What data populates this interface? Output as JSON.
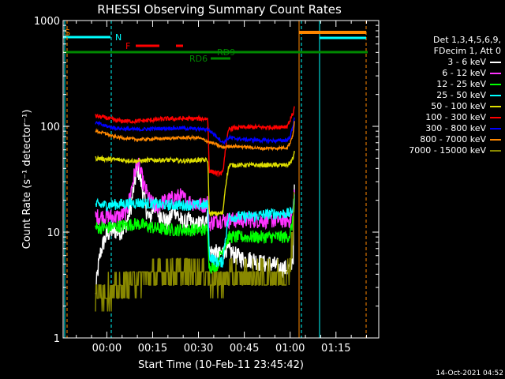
{
  "chart_data": {
    "type": "line",
    "title": "RHESSI Observing Summary Count Rates",
    "xlabel": "Start Time (10-Feb-11 23:45:42)",
    "ylabel": "Count Rate (s⁻¹ detector⁻¹)",
    "yscale": "log",
    "ylim": [
      1,
      1000
    ],
    "y_tick_labels": [
      "1",
      "10",
      "100",
      "1000"
    ],
    "x_unit": "minutes after 00:00",
    "xlim": [
      -14.3,
      89
    ],
    "x_ticks": [
      0,
      15,
      30,
      45,
      60,
      75
    ],
    "x_tick_labels": [
      "00:00",
      "00:15",
      "00:30",
      "00:45",
      "01:00",
      "01:15"
    ],
    "legend_placement": "right",
    "legend_header": [
      "Det 1,3,4,5,6,9,",
      "FDecim 1, Att 0"
    ],
    "timestamp": "14-Oct-2021 04:52",
    "flag_labels": [
      "S",
      "N",
      "F",
      "RD9",
      "RD6"
    ],
    "series": [
      {
        "name": "3 - 6 keV",
        "color": "#ffffff",
        "x": [
          -3.7,
          -2,
          0,
          2,
          4,
          6,
          7,
          8,
          9,
          10,
          11,
          12,
          13,
          14,
          15,
          16,
          17,
          18,
          19,
          20,
          21,
          22,
          23,
          24,
          25,
          26,
          27,
          28,
          29,
          30,
          31,
          32,
          33,
          33.5,
          35,
          37,
          39,
          42,
          45,
          48,
          51,
          54,
          57,
          59,
          60,
          61,
          61.4
        ],
        "y": [
          2.5,
          6.5,
          9.5,
          10.5,
          10,
          11,
          14,
          18,
          28,
          40,
          32,
          22,
          16,
          13,
          16,
          18,
          14,
          15,
          13,
          12,
          14,
          17,
          15,
          13,
          12,
          12,
          13,
          12,
          11,
          12,
          12,
          13,
          15,
          6.5,
          6.5,
          6,
          7,
          6,
          5.5,
          5.5,
          5,
          5,
          4.5,
          4.5,
          4.5,
          6,
          25
        ]
      },
      {
        "name": "6 - 12 keV",
        "color": "#ff33ff",
        "x": [
          -3.7,
          0,
          4,
          6,
          7,
          8,
          9,
          10,
          11,
          12,
          14,
          16,
          18,
          20,
          22,
          24,
          26,
          28,
          30,
          32,
          33,
          33.5,
          36,
          40,
          45,
          50,
          55,
          59,
          60,
          61,
          61.4
        ],
        "y": [
          14,
          14,
          14,
          15,
          18,
          25,
          35,
          45,
          38,
          28,
          20,
          17,
          19,
          20,
          21,
          22,
          20,
          19,
          18,
          18,
          20,
          12,
          13,
          13,
          13,
          13,
          13,
          13,
          13,
          16,
          24
        ]
      },
      {
        "name": "12 - 25 keV",
        "color": "#00ff00",
        "x": [
          -3.7,
          0,
          5,
          10,
          15,
          20,
          25,
          30,
          33,
          33.5,
          36,
          40,
          45,
          50,
          55,
          59,
          60,
          61,
          61.4
        ],
        "y": [
          11,
          11,
          11.5,
          12,
          11,
          10.5,
          10.5,
          10.5,
          10.5,
          4.7,
          4.7,
          9,
          9,
          9,
          9,
          9,
          9.5,
          13,
          20
        ]
      },
      {
        "name": "25 - 50 keV",
        "color": "#00ffff",
        "x": [
          -3.7,
          0,
          5,
          10,
          15,
          20,
          25,
          30,
          33,
          33.5,
          36,
          38,
          40,
          45,
          50,
          55,
          59,
          60,
          61,
          61.4
        ],
        "y": [
          18,
          18,
          18.5,
          19,
          18.5,
          18,
          18,
          18,
          18,
          6,
          5.2,
          5.2,
          14,
          14,
          14.5,
          15,
          15,
          15,
          17,
          22
        ]
      },
      {
        "name": "50 - 100 keV",
        "color": "#dddd00",
        "x": [
          -3.7,
          0,
          5,
          10,
          15,
          20,
          25,
          30,
          33,
          33.5,
          36,
          38,
          40,
          45,
          50,
          55,
          59,
          60,
          61,
          61.4
        ],
        "y": [
          50,
          49,
          48,
          47,
          48,
          48,
          47,
          48,
          48,
          15,
          15,
          15,
          43,
          43,
          43,
          43,
          43,
          45,
          50,
          60
        ]
      },
      {
        "name": "100 - 300 keV",
        "color": "#ff0000",
        "x": [
          -3.7,
          0,
          2,
          5,
          10,
          15,
          20,
          25,
          30,
          33,
          33.5,
          36,
          38,
          40,
          45,
          50,
          55,
          59,
          60,
          61,
          61.4
        ],
        "y": [
          125,
          120,
          115,
          112,
          112,
          115,
          118,
          118,
          118,
          118,
          38,
          36,
          36,
          95,
          98,
          98,
          98,
          100,
          115,
          135,
          150
        ]
      },
      {
        "name": "300 - 800 keV",
        "color": "#0000ff",
        "x": [
          -3.7,
          0,
          2,
          5,
          10,
          15,
          20,
          25,
          30,
          33,
          36,
          38,
          40,
          45,
          50,
          55,
          59,
          60,
          61,
          61.4
        ],
        "y": [
          108,
          100,
          97,
          95,
          93,
          95,
          96,
          96,
          94,
          94,
          80,
          70,
          78,
          75,
          74,
          73,
          74,
          80,
          100,
          125
        ]
      },
      {
        "name": "800 - 7000 keV",
        "color": "#ff8800",
        "x": [
          -3.7,
          0,
          2,
          5,
          10,
          15,
          20,
          25,
          30,
          33,
          36,
          38,
          40,
          45,
          50,
          55,
          59,
          60,
          61,
          61.4
        ],
        "y": [
          90,
          85,
          80,
          78,
          75,
          76,
          77,
          78,
          78,
          72,
          67,
          63,
          65,
          64,
          62,
          62,
          63,
          70,
          85,
          110
        ]
      },
      {
        "name": "7000 - 15000 keV",
        "color": "#888800",
        "x": [
          -3.7,
          -3.6,
          0,
          3,
          5,
          8,
          10,
          15,
          20,
          25,
          30,
          33,
          33.5,
          36,
          38,
          40,
          45,
          50,
          55,
          59,
          60,
          61,
          61.4
        ],
        "y": [
          1.5,
          2.7,
          2.7,
          2.7,
          3.0,
          3.3,
          3.5,
          3.8,
          4.2,
          4.2,
          4.2,
          4.2,
          3.5,
          3.5,
          3.5,
          3.8,
          3.8,
          3.8,
          3.8,
          3.8,
          5,
          10,
          22
        ]
      }
    ]
  }
}
